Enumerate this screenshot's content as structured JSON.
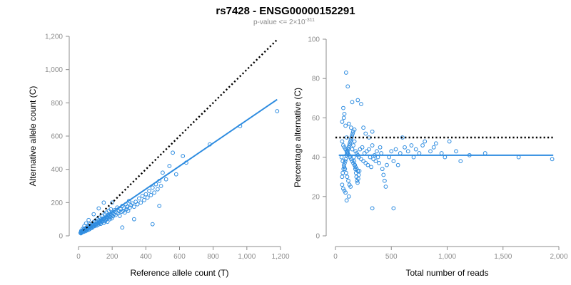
{
  "title": "rs7428 - ENSG00000152291",
  "subtitle": {
    "text": "p-value <= 2×10",
    "exponent": "-311"
  },
  "colors": {
    "points": "#2e8ce0",
    "fit_line": "#2e8ce0",
    "reference_line": "#000000",
    "axis": "#8c8c8c",
    "tick_label": "#8c8c8c"
  },
  "chart_data": [
    {
      "type": "scatter",
      "xlabel": "Reference allele count (T)",
      "ylabel": "Alternative allele count (C)",
      "xlim": [
        0,
        1200
      ],
      "ylim": [
        0,
        1200
      ],
      "xticks": [
        0,
        200,
        400,
        600,
        800,
        1000,
        1200
      ],
      "xtick_labels": [
        "0",
        "200",
        "400",
        "600",
        "800",
        "1,000",
        "1,200"
      ],
      "yticks": [
        0,
        200,
        400,
        600,
        800,
        1000,
        1200
      ],
      "ytick_labels": [
        "0",
        "200",
        "400",
        "600",
        "800",
        "1,000",
        "1,200"
      ],
      "fit_line": {
        "style": "solid",
        "x": [
          10,
          1180
        ],
        "y": [
          12,
          820
        ]
      },
      "reference_line": {
        "style": "dotted",
        "x": [
          30,
          1180
        ],
        "y": [
          30,
          1180
        ]
      },
      "points": [
        [
          12,
          18
        ],
        [
          15,
          22
        ],
        [
          18,
          25
        ],
        [
          20,
          20
        ],
        [
          22,
          30
        ],
        [
          25,
          28
        ],
        [
          28,
          32
        ],
        [
          30,
          24
        ],
        [
          32,
          40
        ],
        [
          35,
          30
        ],
        [
          38,
          35
        ],
        [
          40,
          45
        ],
        [
          42,
          28
        ],
        [
          45,
          38
        ],
        [
          48,
          50
        ],
        [
          50,
          33
        ],
        [
          52,
          42
        ],
        [
          55,
          60
        ],
        [
          58,
          36
        ],
        [
          60,
          48
        ],
        [
          62,
          55
        ],
        [
          65,
          40
        ],
        [
          68,
          70
        ],
        [
          70,
          52
        ],
        [
          72,
          45
        ],
        [
          75,
          62
        ],
        [
          78,
          58
        ],
        [
          80,
          48
        ],
        [
          82,
          75
        ],
        [
          85,
          55
        ],
        [
          88,
          66
        ],
        [
          90,
          60
        ],
        [
          92,
          85
        ],
        [
          95,
          58
        ],
        [
          98,
          72
        ],
        [
          100,
          65
        ],
        [
          102,
          90
        ],
        [
          105,
          70
        ],
        [
          108,
          62
        ],
        [
          110,
          80
        ],
        [
          112,
          100
        ],
        [
          115,
          75
        ],
        [
          118,
          68
        ],
        [
          120,
          92
        ],
        [
          122,
          80
        ],
        [
          125,
          110
        ],
        [
          128,
          78
        ],
        [
          130,
          88
        ],
        [
          132,
          72
        ],
        [
          135,
          100
        ],
        [
          138,
          95
        ],
        [
          140,
          85
        ],
        [
          142,
          120
        ],
        [
          145,
          90
        ],
        [
          148,
          105
        ],
        [
          150,
          78
        ],
        [
          152,
          98
        ],
        [
          155,
          130
        ],
        [
          158,
          88
        ],
        [
          160,
          110
        ],
        [
          162,
          95
        ],
        [
          165,
          140
        ],
        [
          168,
          102
        ],
        [
          170,
          115
        ],
        [
          172,
          85
        ],
        [
          175,
          125
        ],
        [
          178,
          108
        ],
        [
          180,
          150
        ],
        [
          182,
          118
        ],
        [
          185,
          100
        ],
        [
          188,
          132
        ],
        [
          190,
          112
        ],
        [
          192,
          160
        ],
        [
          195,
          122
        ],
        [
          198,
          105
        ],
        [
          200,
          140
        ],
        [
          205,
          118
        ],
        [
          210,
          130
        ],
        [
          215,
          155
        ],
        [
          220,
          125
        ],
        [
          225,
          140
        ],
        [
          230,
          170
        ],
        [
          235,
          135
        ],
        [
          240,
          150
        ],
        [
          245,
          120
        ],
        [
          250,
          160
        ],
        [
          255,
          145
        ],
        [
          260,
          180
        ],
        [
          265,
          150
        ],
        [
          270,
          165
        ],
        [
          275,
          140
        ],
        [
          280,
          190
        ],
        [
          285,
          160
        ],
        [
          290,
          175
        ],
        [
          295,
          150
        ],
        [
          300,
          210
        ],
        [
          305,
          170
        ],
        [
          310,
          185
        ],
        [
          320,
          195
        ],
        [
          330,
          175
        ],
        [
          340,
          205
        ],
        [
          350,
          190
        ],
        [
          360,
          225
        ],
        [
          370,
          200
        ],
        [
          380,
          240
        ],
        [
          390,
          215
        ],
        [
          400,
          250
        ],
        [
          410,
          230
        ],
        [
          420,
          270
        ],
        [
          430,
          245
        ],
        [
          440,
          290
        ],
        [
          450,
          260
        ],
        [
          460,
          310
        ],
        [
          470,
          280
        ],
        [
          480,
          330
        ],
        [
          490,
          300
        ],
        [
          500,
          380
        ],
        [
          520,
          340
        ],
        [
          540,
          420
        ],
        [
          560,
          500
        ],
        [
          580,
          370
        ],
        [
          620,
          480
        ],
        [
          640,
          440
        ],
        [
          780,
          550
        ],
        [
          960,
          660
        ],
        [
          1180,
          750
        ],
        [
          260,
          50
        ],
        [
          330,
          100
        ],
        [
          440,
          70
        ],
        [
          480,
          180
        ],
        [
          200,
          200
        ],
        [
          150,
          200
        ],
        [
          120,
          165
        ],
        [
          90,
          130
        ],
        [
          60,
          95
        ],
        [
          45,
          75
        ],
        [
          35,
          60
        ],
        [
          25,
          42
        ],
        [
          16,
          30
        ],
        [
          14,
          15
        ]
      ]
    },
    {
      "type": "scatter",
      "xlabel": "Total number of reads",
      "ylabel": "Percentage alternative (C)",
      "xlim": [
        0,
        2000
      ],
      "ylim": [
        0,
        100
      ],
      "xticks": [
        0,
        500,
        1000,
        1500,
        2000
      ],
      "xtick_labels": [
        "0",
        "500",
        "1,000",
        "1,500",
        "2,000"
      ],
      "yticks": [
        0,
        20,
        40,
        60,
        80,
        100
      ],
      "ytick_labels": [
        "0",
        "20",
        "40",
        "60",
        "80",
        "100"
      ],
      "fit_line": {
        "style": "solid",
        "x": [
          30,
          1950
        ],
        "y": [
          41,
          41
        ]
      },
      "reference_line": {
        "style": "dotted",
        "x": [
          0,
          1950
        ],
        "y": [
          50,
          50
        ]
      },
      "points": [
        [
          95,
          83
        ],
        [
          110,
          76
        ],
        [
          70,
          65
        ],
        [
          80,
          62
        ],
        [
          200,
          69
        ],
        [
          230,
          67
        ],
        [
          150,
          68
        ],
        [
          60,
          58
        ],
        [
          75,
          60
        ],
        [
          90,
          56
        ],
        [
          120,
          57
        ],
        [
          140,
          55
        ],
        [
          170,
          54
        ],
        [
          250,
          55
        ],
        [
          270,
          52
        ],
        [
          300,
          50
        ],
        [
          330,
          53
        ],
        [
          100,
          50
        ],
        [
          60,
          48
        ],
        [
          70,
          46
        ],
        [
          80,
          45
        ],
        [
          90,
          44
        ],
        [
          100,
          43
        ],
        [
          110,
          42
        ],
        [
          120,
          41
        ],
        [
          130,
          40
        ],
        [
          140,
          39
        ],
        [
          150,
          38
        ],
        [
          160,
          37
        ],
        [
          170,
          36
        ],
        [
          180,
          35
        ],
        [
          190,
          34
        ],
        [
          200,
          33
        ],
        [
          55,
          40
        ],
        [
          65,
          38
        ],
        [
          75,
          36
        ],
        [
          85,
          34
        ],
        [
          95,
          32
        ],
        [
          105,
          30
        ],
        [
          115,
          28
        ],
        [
          125,
          26
        ],
        [
          135,
          25
        ],
        [
          60,
          26
        ],
        [
          70,
          24
        ],
        [
          80,
          23
        ],
        [
          90,
          22
        ],
        [
          100,
          18
        ],
        [
          120,
          20
        ],
        [
          150,
          44
        ],
        [
          160,
          46
        ],
        [
          170,
          48
        ],
        [
          180,
          43
        ],
        [
          190,
          42
        ],
        [
          200,
          41
        ],
        [
          210,
          40
        ],
        [
          220,
          44
        ],
        [
          230,
          39
        ],
        [
          240,
          45
        ],
        [
          250,
          38
        ],
        [
          260,
          42
        ],
        [
          270,
          37
        ],
        [
          280,
          43
        ],
        [
          290,
          36
        ],
        [
          300,
          44
        ],
        [
          310,
          40
        ],
        [
          320,
          35
        ],
        [
          330,
          46
        ],
        [
          340,
          39
        ],
        [
          350,
          41
        ],
        [
          360,
          38
        ],
        [
          370,
          43
        ],
        [
          380,
          40
        ],
        [
          390,
          37
        ],
        [
          400,
          45
        ],
        [
          410,
          42
        ],
        [
          420,
          34
        ],
        [
          430,
          31
        ],
        [
          440,
          28
        ],
        [
          450,
          25
        ],
        [
          460,
          36
        ],
        [
          480,
          40
        ],
        [
          500,
          43
        ],
        [
          520,
          38
        ],
        [
          540,
          44
        ],
        [
          560,
          36
        ],
        [
          580,
          42
        ],
        [
          600,
          50
        ],
        [
          620,
          45
        ],
        [
          650,
          43
        ],
        [
          680,
          46
        ],
        [
          700,
          40
        ],
        [
          720,
          44
        ],
        [
          750,
          42
        ],
        [
          780,
          46
        ],
        [
          800,
          48
        ],
        [
          850,
          43
        ],
        [
          880,
          45
        ],
        [
          900,
          47
        ],
        [
          950,
          42
        ],
        [
          980,
          40
        ],
        [
          1020,
          48
        ],
        [
          1080,
          43
        ],
        [
          1120,
          38
        ],
        [
          1200,
          41
        ],
        [
          1340,
          42
        ],
        [
          1640,
          40
        ],
        [
          1940,
          39
        ],
        [
          330,
          14
        ],
        [
          520,
          14
        ],
        [
          60,
          30
        ],
        [
          65,
          32
        ],
        [
          72,
          34
        ],
        [
          78,
          35
        ],
        [
          82,
          37
        ],
        [
          88,
          38
        ],
        [
          92,
          39
        ],
        [
          98,
          41
        ],
        [
          104,
          42
        ],
        [
          108,
          43
        ],
        [
          114,
          44
        ],
        [
          118,
          45
        ],
        [
          124,
          46
        ],
        [
          128,
          47
        ],
        [
          134,
          48
        ],
        [
          138,
          49
        ],
        [
          144,
          50
        ],
        [
          148,
          51
        ],
        [
          154,
          52
        ],
        [
          158,
          53
        ],
        [
          164,
          40
        ],
        [
          168,
          38
        ],
        [
          174,
          36
        ],
        [
          178,
          34
        ],
        [
          184,
          32
        ],
        [
          188,
          30
        ],
        [
          194,
          28
        ],
        [
          198,
          27
        ],
        [
          204,
          29
        ],
        [
          208,
          31
        ],
        [
          214,
          33
        ]
      ]
    }
  ]
}
